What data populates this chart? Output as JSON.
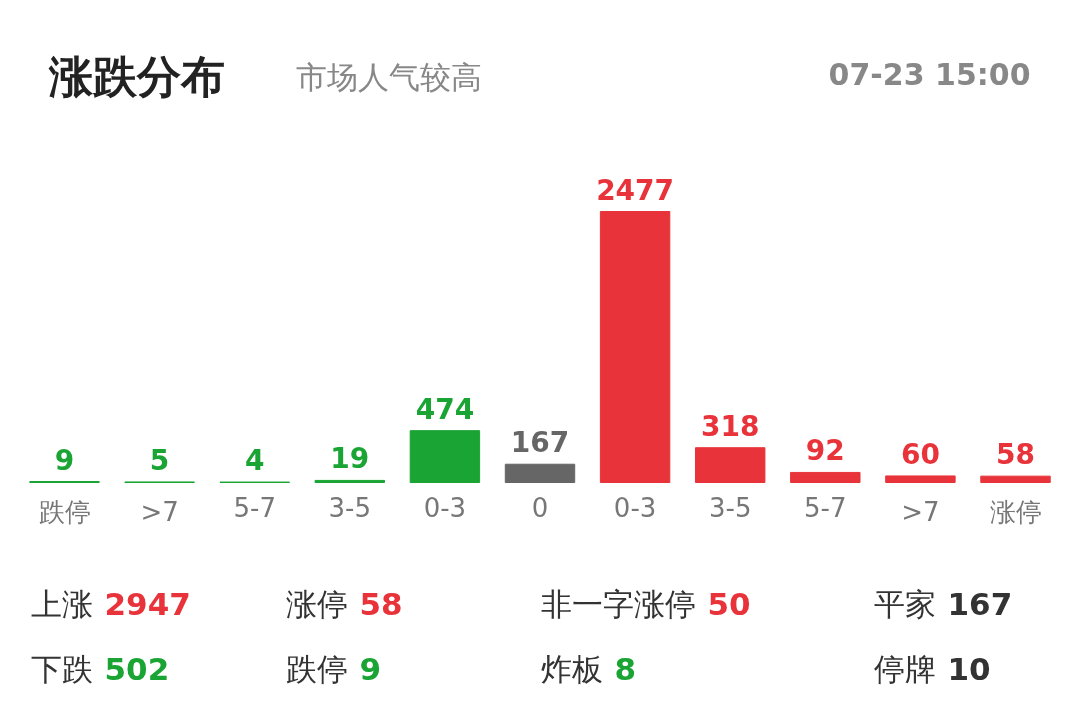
{
  "chart_data": {
    "type": "bar",
    "title": "涨跌分布",
    "subtitle": "市场人气较高",
    "categories": [
      "跌停",
      ">7",
      "5-7",
      "3-5",
      "0-3",
      "0",
      "0-3",
      "3-5",
      "5-7",
      ">7",
      "涨停"
    ],
    "values": [
      9,
      5,
      4,
      19,
      474,
      167,
      2477,
      318,
      92,
      60,
      58
    ],
    "colors": [
      "#1aa434",
      "#1aa434",
      "#1aa434",
      "#1aa434",
      "#1aa434",
      "#666666",
      "#e8333a",
      "#e8333a",
      "#e8333a",
      "#e8333a",
      "#e8333a"
    ],
    "data_labels": true,
    "annotations": [
      "07-23 15:00",
      "上涨 2947",
      "涨停 58",
      "非一字涨停 50",
      "平家 167",
      "下跌 502",
      "跌停 9",
      "炸板 8",
      "停牌 10"
    ]
  }
}
